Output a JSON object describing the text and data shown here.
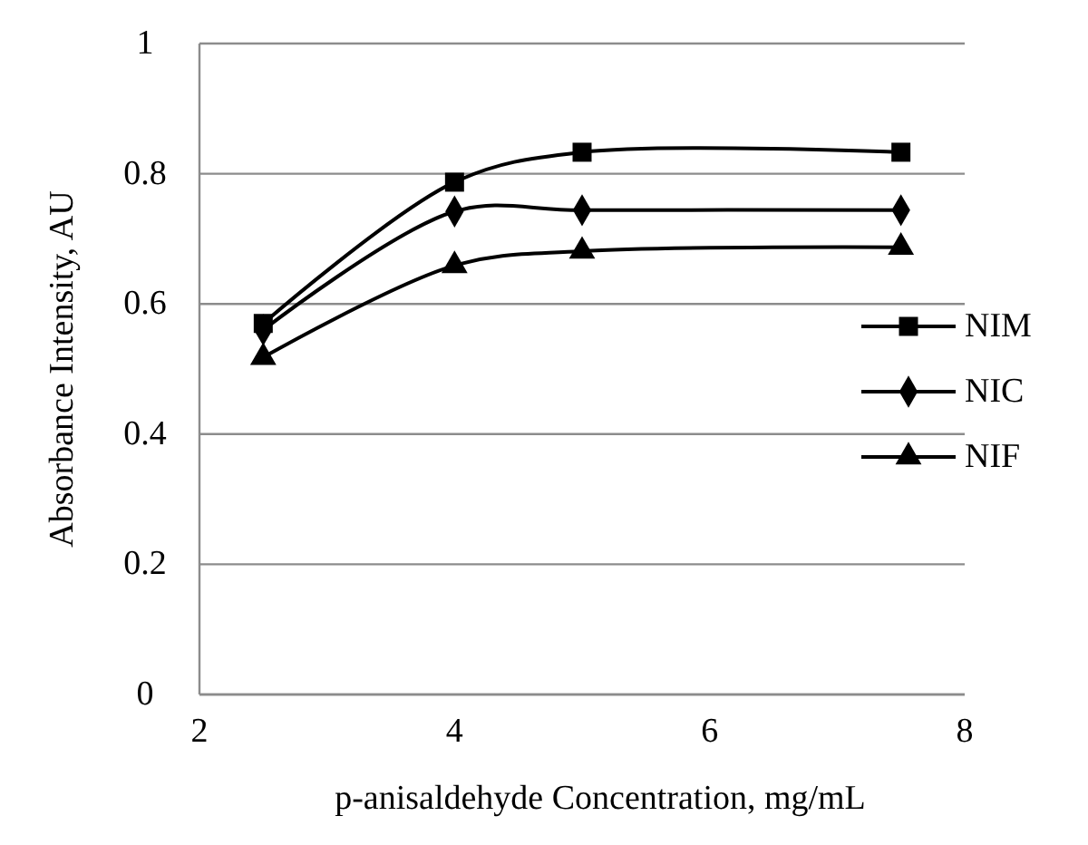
{
  "chart_data": {
    "type": "line",
    "xlabel": "p-anisaldehyde Concentration, mg/mL",
    "ylabel": "Absorbance Intensity, AU",
    "x": [
      2.5,
      4,
      5,
      7.5
    ],
    "series": [
      {
        "name": "NIM",
        "color": "#000000",
        "marker": "square",
        "values": [
          0.57,
          0.787,
          0.833,
          0.833
        ]
      },
      {
        "name": "NIC",
        "color": "#000000",
        "marker": "diamond",
        "values": [
          0.56,
          0.742,
          0.744,
          0.744
        ]
      },
      {
        "name": "NIF",
        "color": "#000000",
        "marker": "triangle",
        "values": [
          0.518,
          0.659,
          0.681,
          0.687
        ]
      }
    ],
    "xlim": [
      2,
      8
    ],
    "xticks": [
      2,
      4,
      6,
      8
    ],
    "ylim": [
      0,
      1
    ],
    "yticks": [
      0,
      0.2,
      0.4,
      0.6,
      0.8,
      1
    ],
    "grid": "y",
    "legend": "right",
    "line_style": "solid"
  }
}
